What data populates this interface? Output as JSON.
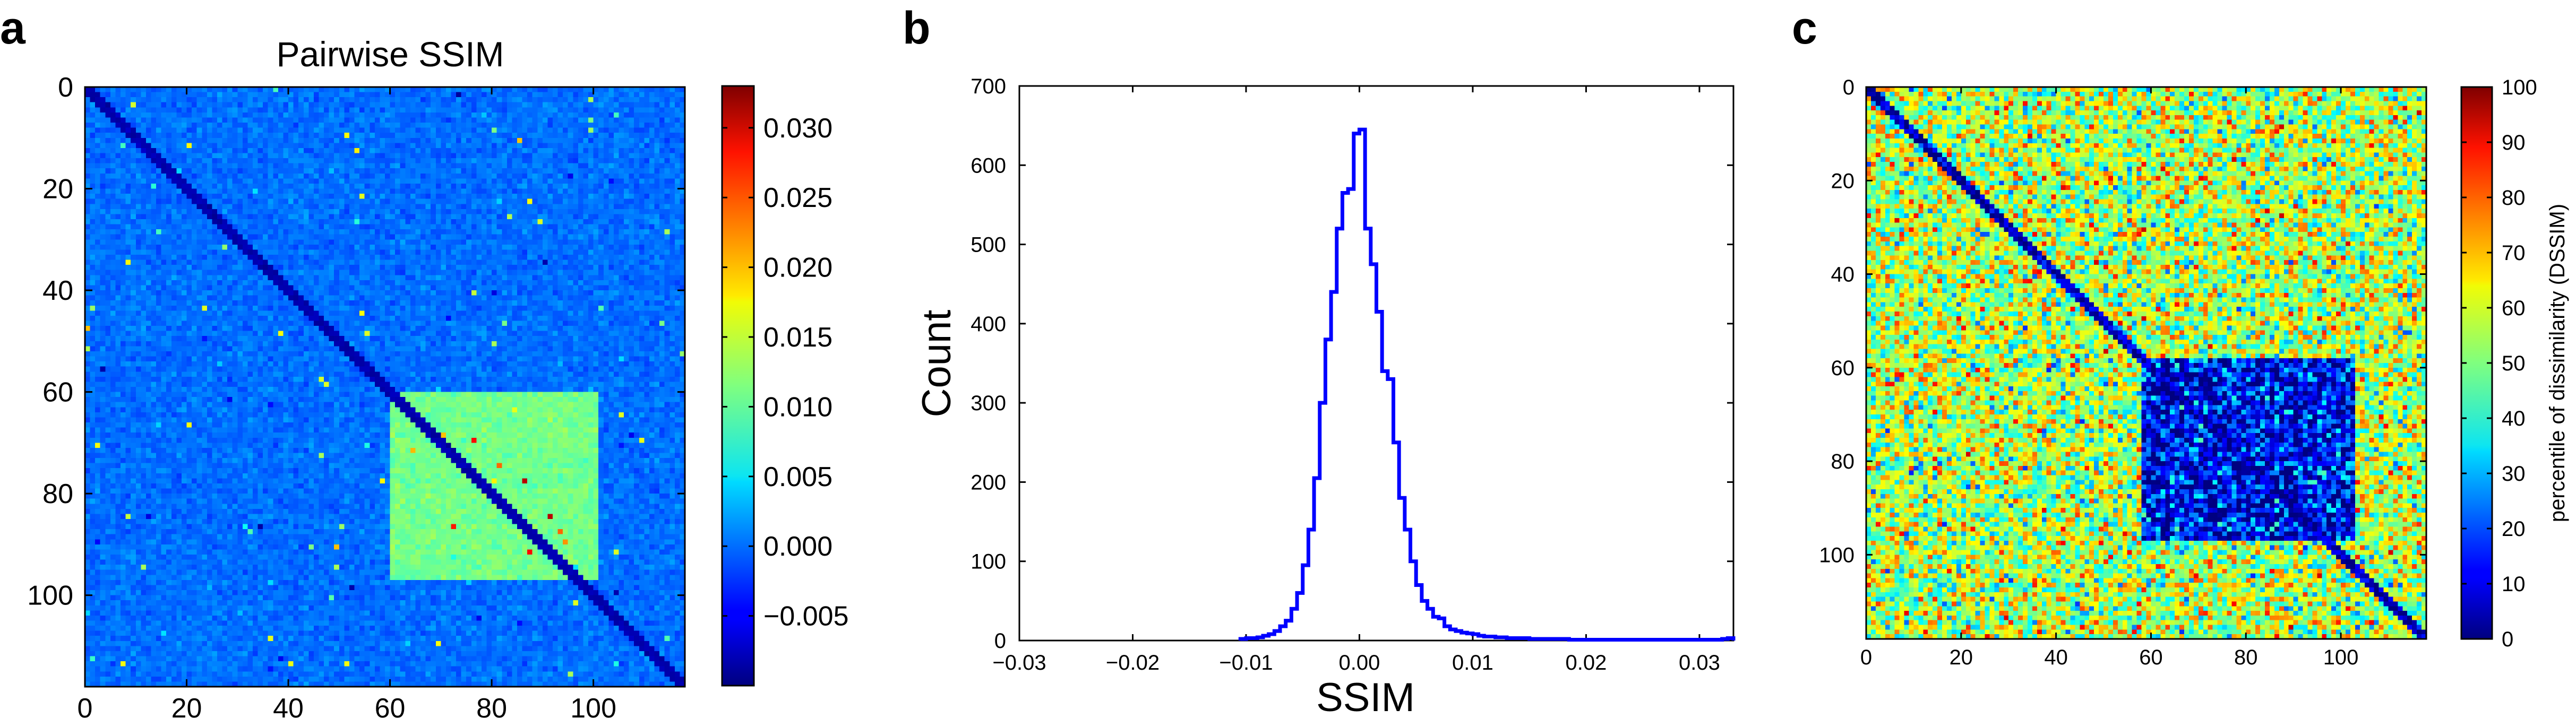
{
  "panel_labels": {
    "a": "a",
    "b": "b",
    "c": "c"
  },
  "chart_data": [
    {
      "type": "heatmap",
      "title": "Pairwise SSIM",
      "xlabel": "",
      "ylabel": "",
      "xlim": [
        0,
        118
      ],
      "ylim": [
        118,
        0
      ],
      "x_ticks": [
        "0",
        "20",
        "40",
        "60",
        "80",
        "100"
      ],
      "y_ticks": [
        "0",
        "20",
        "40",
        "60",
        "80",
        "100"
      ],
      "matrix_size": 118,
      "colormap": "jet",
      "color_range": [
        -0.01,
        0.033
      ],
      "colorbar_ticks": [
        "0.030",
        "0.025",
        "0.020",
        "0.015",
        "0.010",
        "0.005",
        "0.000",
        "−0.005"
      ],
      "colorbar_tick_values": [
        0.03,
        0.025,
        0.02,
        0.015,
        0.01,
        0.005,
        0.0,
        -0.005
      ],
      "background_value": 0.0,
      "block": {
        "rows": [
          60,
          96
        ],
        "cols": [
          60,
          100
        ],
        "value": 0.011
      },
      "diagonal_value": -0.008
    },
    {
      "type": "line",
      "title": "",
      "xlabel": "SSIM",
      "ylabel": "Count",
      "xlim": [
        -0.03,
        0.033
      ],
      "ylim": [
        0,
        700
      ],
      "x_ticks": [
        "−0.03",
        "−0.02",
        "−0.01",
        "0.00",
        "0.01",
        "0.02",
        "0.03"
      ],
      "x_tick_values": [
        -0.03,
        -0.02,
        -0.01,
        0.0,
        0.01,
        0.02,
        0.03
      ],
      "y_ticks": [
        "0",
        "100",
        "200",
        "300",
        "400",
        "500",
        "600",
        "700"
      ],
      "y_tick_values": [
        0,
        100,
        200,
        300,
        400,
        500,
        600,
        700
      ],
      "grid": false,
      "line_color": "#0000ff",
      "histogram_bin_width": 0.0005,
      "series": [
        {
          "x": [
            -0.0105,
            -0.01,
            -0.0095,
            -0.009,
            -0.0085,
            -0.008,
            -0.0075,
            -0.007,
            -0.0065,
            -0.006,
            -0.0055,
            -0.005,
            -0.0045,
            -0.004,
            -0.0035,
            -0.003,
            -0.0025,
            -0.002,
            -0.0015,
            -0.001,
            -0.0005,
            0.0,
            0.0005,
            0.001,
            0.0015,
            0.002,
            0.0025,
            0.003,
            0.0035,
            0.004,
            0.0045,
            0.005,
            0.0055,
            0.006,
            0.0065,
            0.007,
            0.0075,
            0.008,
            0.0085,
            0.009,
            0.0095,
            0.01,
            0.0105,
            0.011,
            0.0115,
            0.012,
            0.0125,
            0.013,
            0.0135,
            0.014,
            0.0145,
            0.015,
            0.0155,
            0.016,
            0.0165,
            0.017,
            0.0175,
            0.018,
            0.0185,
            0.019,
            0.0195,
            0.02,
            0.0205,
            0.021,
            0.0215,
            0.022,
            0.0225,
            0.023,
            0.0235,
            0.024,
            0.0245,
            0.025,
            0.0255,
            0.026,
            0.0265,
            0.027,
            0.0275,
            0.028,
            0.0285,
            0.029,
            0.0295,
            0.03,
            0.0305,
            0.031,
            0.0315,
            0.032,
            0.0325
          ],
          "y": [
            2,
            3,
            3,
            4,
            6,
            8,
            12,
            18,
            25,
            40,
            60,
            95,
            140,
            205,
            300,
            380,
            440,
            520,
            565,
            570,
            640,
            645,
            520,
            475,
            415,
            340,
            330,
            250,
            180,
            140,
            100,
            70,
            50,
            40,
            30,
            28,
            18,
            14,
            12,
            10,
            9,
            8,
            6,
            5,
            5,
            4,
            4,
            3,
            3,
            3,
            3,
            2,
            2,
            2,
            2,
            2,
            2,
            2,
            1,
            1,
            1,
            1,
            1,
            1,
            1,
            1,
            1,
            1,
            1,
            1,
            1,
            1,
            1,
            1,
            1,
            1,
            1,
            1,
            1,
            1,
            1,
            1,
            1,
            1,
            1,
            2,
            3
          ]
        }
      ]
    },
    {
      "type": "heatmap",
      "title": "",
      "xlabel": "",
      "ylabel": "",
      "xlim": [
        0,
        118
      ],
      "ylim": [
        118,
        0
      ],
      "x_ticks": [
        "0",
        "20",
        "40",
        "60",
        "80",
        "100"
      ],
      "y_ticks": [
        "0",
        "20",
        "40",
        "60",
        "80",
        "100"
      ],
      "matrix_size": 118,
      "colormap": "jet",
      "color_range": [
        0,
        100
      ],
      "colorbar_ticks": [
        "100",
        "90",
        "80",
        "70",
        "60",
        "50",
        "40",
        "30",
        "20",
        "10",
        "0"
      ],
      "colorbar_tick_values": [
        100,
        90,
        80,
        70,
        60,
        50,
        40,
        30,
        20,
        10,
        0
      ],
      "colorbar_label": "percentile of dissimilarity (DSSIM)",
      "background_value": 55,
      "block": {
        "rows": [
          58,
          96
        ],
        "cols": [
          58,
          102
        ],
        "value": 12
      },
      "diagonal_value": 5
    }
  ]
}
